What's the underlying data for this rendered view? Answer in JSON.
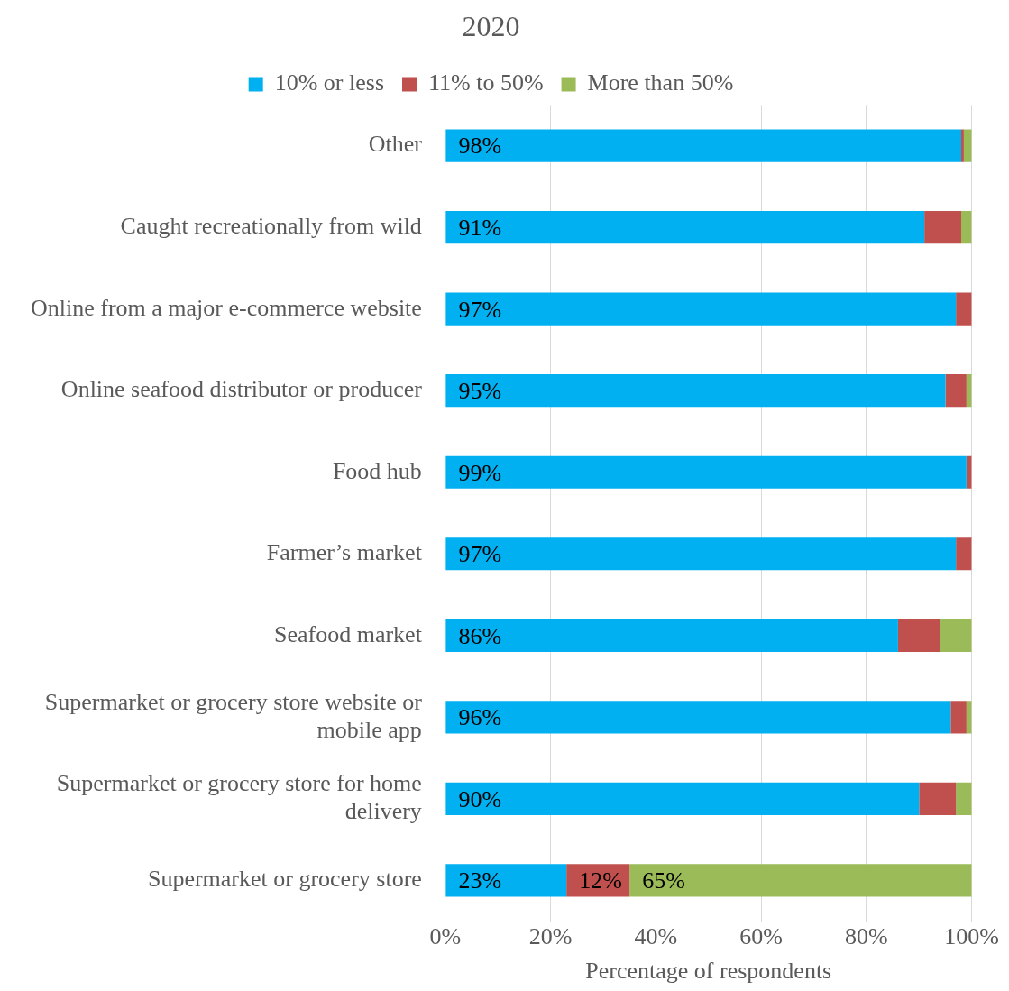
{
  "chart_data": {
    "type": "bar",
    "orientation": "horizontal",
    "stacked": true,
    "title": "2020",
    "xlabel": "Percentage of respondents",
    "categories": [
      "Other",
      "Caught recreationally from wild",
      "Online from a major e-commerce website",
      "Online seafood distributor or producer",
      "Food hub",
      "Farmer’s market",
      "Seafood market",
      "Supermarket or grocery store website or mobile app",
      "Supermarket or grocery store for home delivery",
      "Supermarket or grocery store"
    ],
    "series": [
      {
        "name": "10% or less",
        "color": "#00b0f0",
        "values": [
          98,
          91,
          97,
          95,
          99,
          97,
          86,
          96,
          90,
          23
        ],
        "value_labels": [
          "98%",
          "91%",
          "97%",
          "95%",
          "99%",
          "97%",
          "86%",
          "96%",
          "90%",
          "23%"
        ]
      },
      {
        "name": "11% to 50%",
        "color": "#c0504d",
        "values": [
          0.5,
          7,
          3,
          4,
          1,
          3,
          8,
          3,
          7,
          12
        ],
        "value_labels": [
          null,
          null,
          null,
          null,
          null,
          null,
          null,
          null,
          null,
          "12%"
        ]
      },
      {
        "name": "More than 50%",
        "color": "#9bbb59",
        "values": [
          1.5,
          2,
          0,
          1,
          0,
          0,
          6,
          1,
          3,
          65
        ],
        "value_labels": [
          null,
          null,
          null,
          null,
          null,
          null,
          null,
          null,
          null,
          "65%"
        ]
      }
    ],
    "xlim": [
      0,
      100
    ],
    "xticks": [
      {
        "value": 0,
        "label": "0%"
      },
      {
        "value": 20,
        "label": "20%"
      },
      {
        "value": 40,
        "label": "40%"
      },
      {
        "value": 60,
        "label": "60%"
      },
      {
        "value": 80,
        "label": "80%"
      },
      {
        "value": 100,
        "label": "100%"
      }
    ],
    "grid": "x",
    "legend": "top"
  }
}
